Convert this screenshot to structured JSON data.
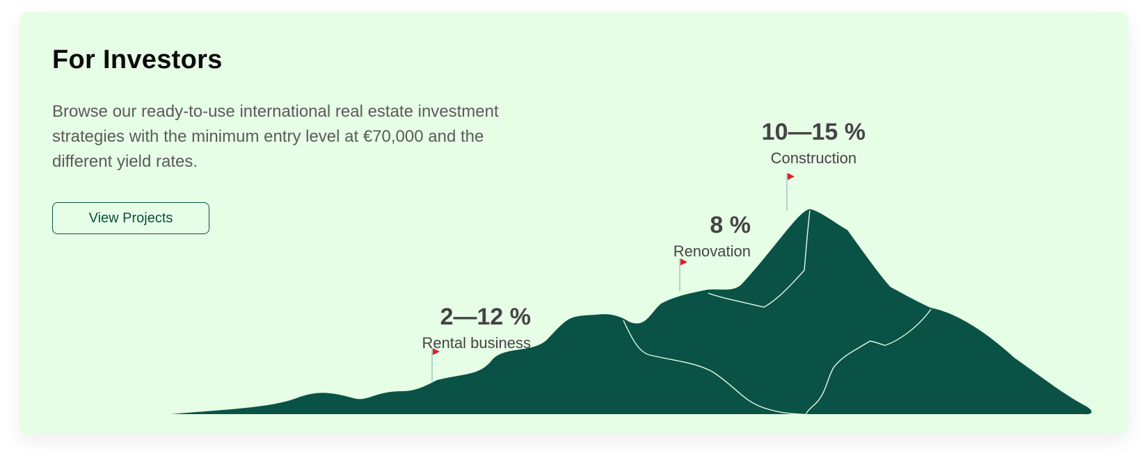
{
  "header": {
    "title": "For Investors",
    "description": "Browse our ready-to-use international real estate investment strategies with the minimum entry level at €70,000 and the different yield rates."
  },
  "actions": {
    "view_projects_label": "View Projects"
  },
  "stats": [
    {
      "percent": "2—12 %",
      "label": "Rental business"
    },
    {
      "percent": "8 %",
      "label": "Renovation"
    },
    {
      "percent": "10—15 %",
      "label": "Construction"
    }
  ],
  "colors": {
    "card_background": "#e6fde6",
    "mountain": "#0a5246",
    "flag": "#e01e25",
    "button_border": "#0b4f43",
    "title": "#0b0b0b",
    "body_text": "#5b5b5b",
    "stat_text": "#444444"
  },
  "icons": {
    "flag": "flag-icon"
  }
}
